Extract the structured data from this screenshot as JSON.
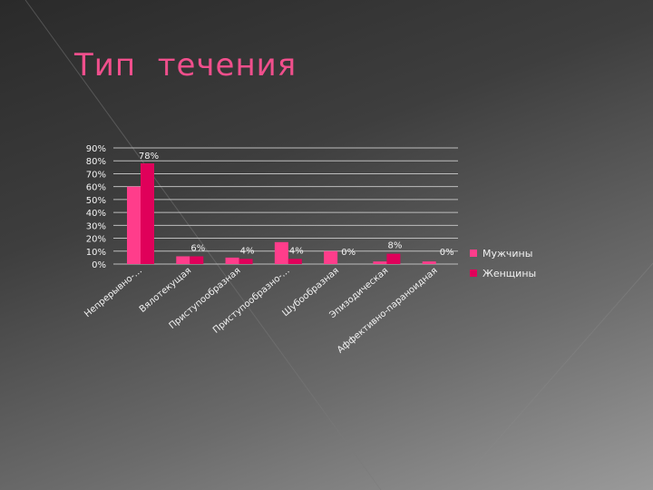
{
  "slide": {
    "title": "Тип  течения"
  },
  "chart_data": {
    "type": "bar",
    "categories": [
      "Непрерывно-…",
      "Вялотекущая",
      "Приступообразная",
      "Приступообразно-…",
      "Шубообразная",
      "Эпизодическая",
      "Аффективно-параноидная"
    ],
    "series": [
      {
        "name": "Мужчины",
        "color": "#ff3d8b",
        "values": [
          60,
          6,
          5,
          17,
          10,
          2,
          2
        ]
      },
      {
        "name": "Женщины",
        "color": "#e0005a",
        "values": [
          78,
          6,
          4,
          4,
          0,
          8,
          0
        ]
      }
    ],
    "data_labels": [
      {
        "category_index": 0,
        "text": "78%"
      },
      {
        "category_index": 1,
        "text": "6%"
      },
      {
        "category_index": 2,
        "text": "4%"
      },
      {
        "category_index": 3,
        "text": "4%"
      },
      {
        "category_index": 4,
        "text": "0%"
      },
      {
        "category_index": 5,
        "text": "8%"
      },
      {
        "category_index": 6,
        "text": "0%"
      }
    ],
    "yticks": [
      "0%",
      "10%",
      "20%",
      "30%",
      "40%",
      "50%",
      "60%",
      "70%",
      "80%",
      "90%"
    ],
    "ylim": [
      0,
      90
    ],
    "grid": true,
    "legend": "right"
  }
}
